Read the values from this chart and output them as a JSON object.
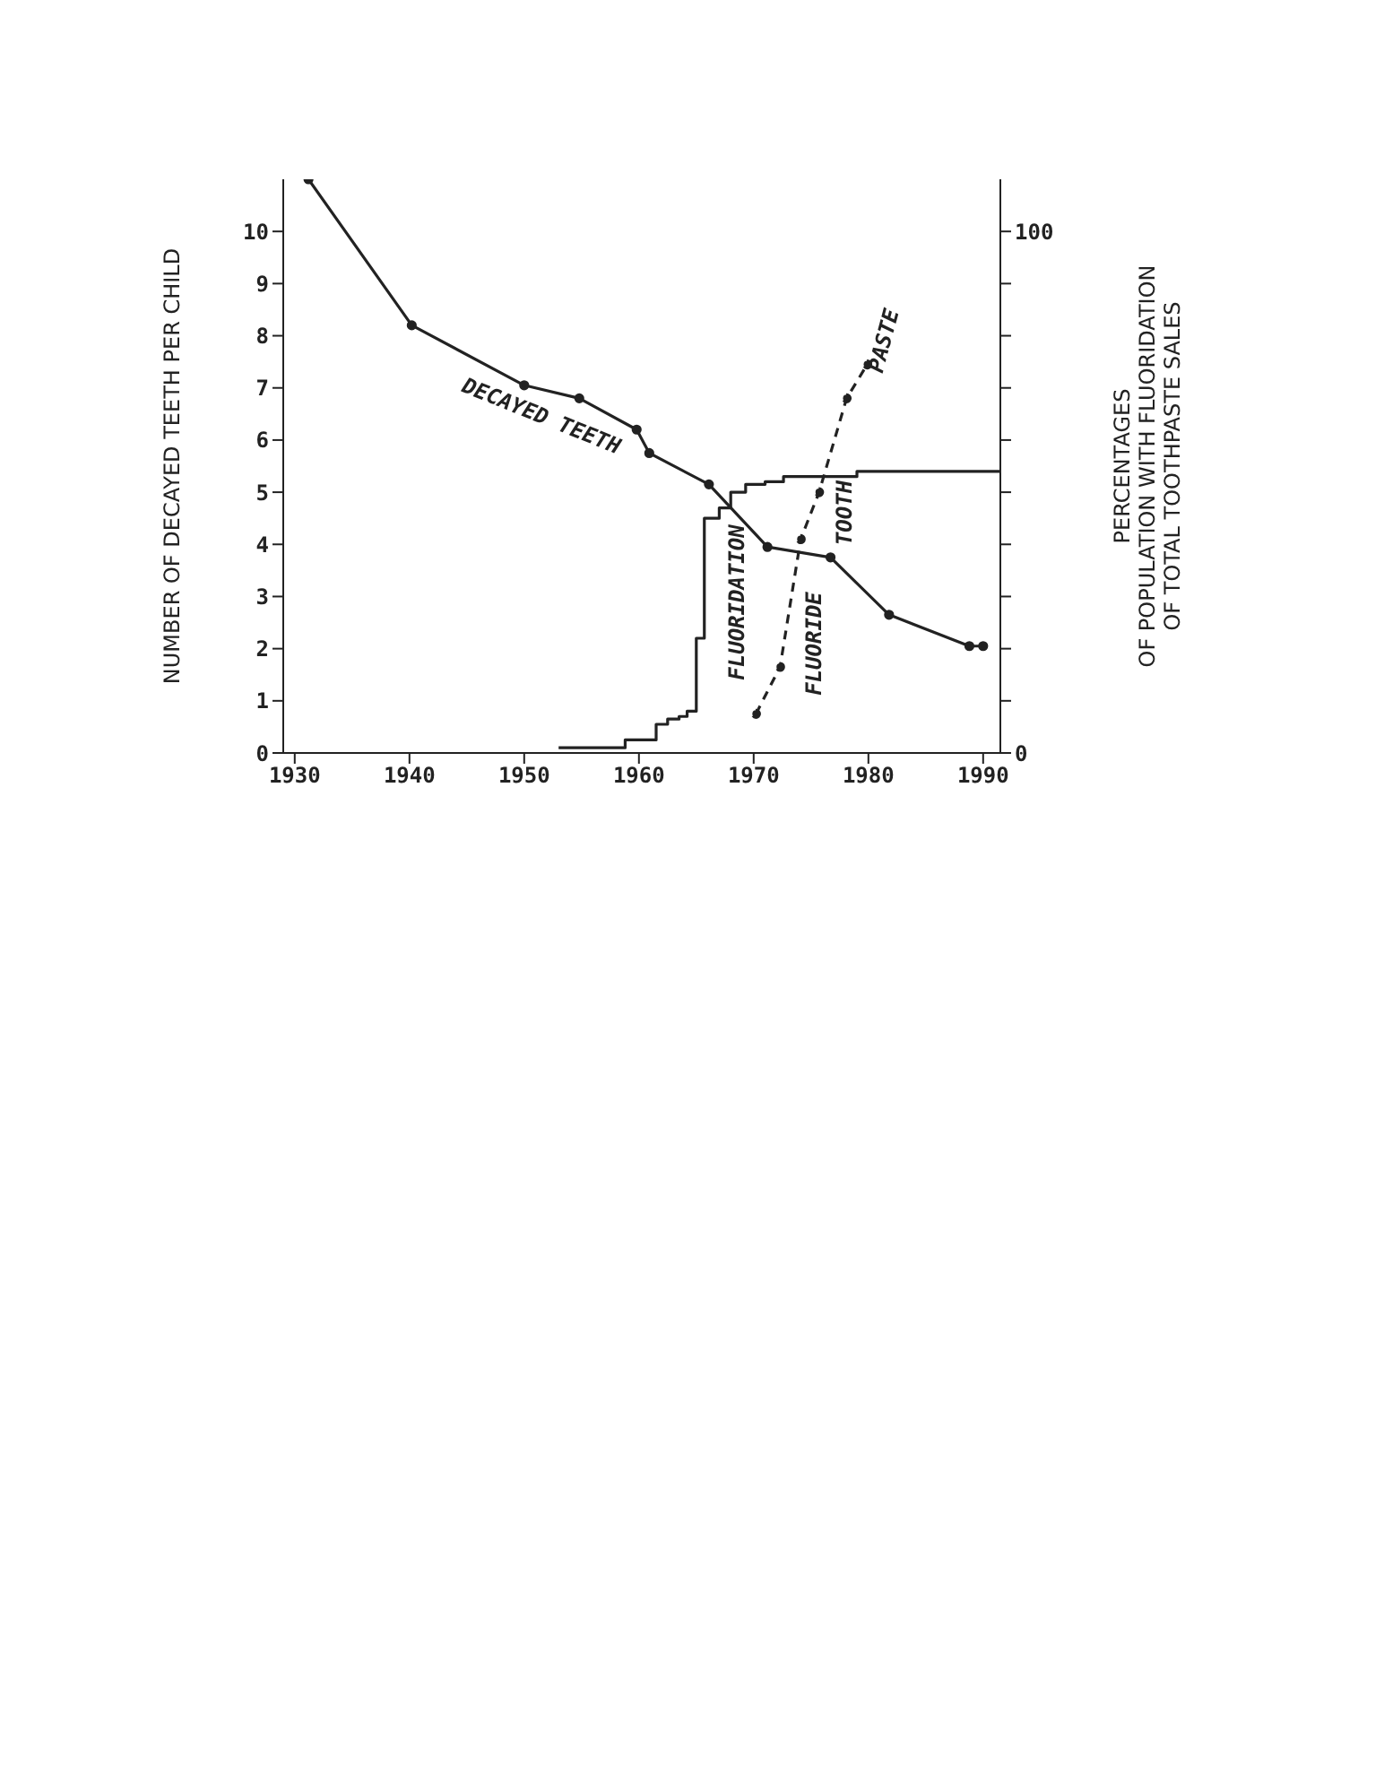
{
  "chart_data": {
    "type": "line",
    "ylabel": "NUMBER OF DECAYED TEETH PER CHILD",
    "y2label": "PERCENTAGES\nOF POPULATION WITH FLUORIDATION\nOF TOTAL TOOTHPASTE SALES",
    "xlim": [
      1929,
      1991.5
    ],
    "xticks": [
      1930,
      1940,
      1950,
      1960,
      1970,
      1980,
      1990
    ],
    "ylim": [
      0,
      11
    ],
    "yticks": [
      0,
      1,
      2,
      3,
      4,
      5,
      6,
      7,
      8,
      9,
      10
    ],
    "y2lim": [
      0,
      110
    ],
    "y2ticks": [
      0,
      {
        "value": 10,
        "label": null
      },
      {
        "value": 20,
        "label": null
      },
      {
        "value": 30,
        "label": null
      },
      {
        "value": 40,
        "label": null
      },
      {
        "value": 50,
        "label": null
      },
      {
        "value": 60,
        "label": null
      },
      {
        "value": 70,
        "label": null
      },
      {
        "value": 80,
        "label": null
      },
      {
        "value": 90,
        "label": null
      },
      100
    ],
    "series": [
      {
        "name": "DECAYED TEETH",
        "color": "#222222",
        "marker": "circle",
        "line_style": "solid",
        "x": [
          1931.2,
          1940.2,
          1950,
          1954.8,
          1959.8,
          1960.9,
          1966.1,
          1971.2,
          1976.7,
          1981.8,
          1988.8,
          1990
        ],
        "values": [
          11,
          8.2,
          7.05,
          6.8,
          6.2,
          5.75,
          5.15,
          3.95,
          3.75,
          2.65,
          2.05,
          2.05
        ]
      },
      {
        "name": "FLUORIDATION",
        "type": "step",
        "axis": "y2",
        "color": "#222222",
        "marker": "none",
        "line_style": "solid",
        "x": [
          1953,
          1958.8,
          1961.5,
          1962.5,
          1963.5,
          1964.2,
          1965,
          1965.7,
          1967,
          1968,
          1969.3,
          1971,
          1972.6,
          1979,
          1991.5
        ],
        "values": [
          1,
          2.5,
          5.5,
          6.5,
          7,
          8,
          22,
          45,
          47,
          50,
          51.5,
          52,
          53,
          54,
          54
        ]
      },
      {
        "name": "FLUORIDE TOOTH PASTE",
        "type": "line",
        "axis": "y2",
        "color": "#222222",
        "marker": "circle",
        "line_style": "dashed",
        "x": [
          1970.2,
          1972.3,
          1974.1,
          1975.7,
          1978.1,
          1979.9
        ],
        "values": [
          7.5,
          16.5,
          41,
          50,
          68,
          74.5
        ]
      }
    ]
  }
}
